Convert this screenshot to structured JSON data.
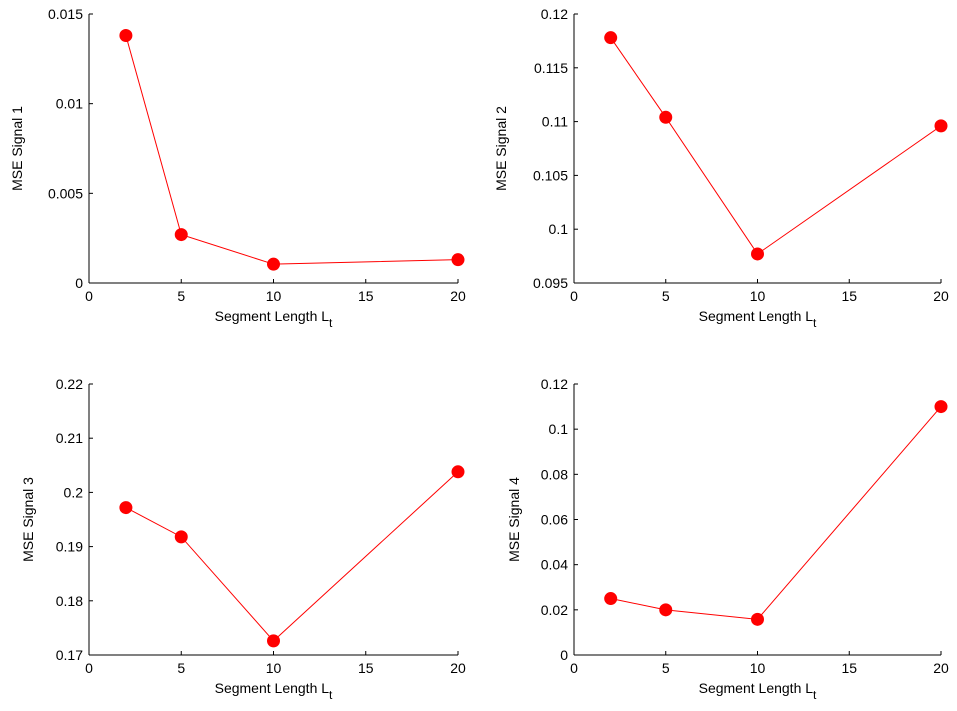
{
  "figure": {
    "marker_color": "#ff0000",
    "line_color": "#ff0000",
    "axis_color": "#000000"
  },
  "chart_data": [
    {
      "type": "line",
      "xlabel": "Segment Length L",
      "xlabel_subscript": "t",
      "ylabel": "MSE Signal 1",
      "x": [
        2,
        5,
        10,
        20
      ],
      "values": [
        0.0138,
        0.0027,
        0.00105,
        0.0013
      ],
      "xlim": [
        0,
        20
      ],
      "ylim": [
        0,
        0.015
      ],
      "xticks": [
        0,
        5,
        10,
        15,
        20
      ],
      "xtick_labels": [
        "0",
        "5",
        "10",
        "15",
        "20"
      ],
      "yticks": [
        0,
        0.005,
        0.01,
        0.015
      ],
      "ytick_labels": [
        "0",
        "0.005",
        "0.01",
        "0.015"
      ],
      "grid": false
    },
    {
      "type": "line",
      "xlabel": "Segment Length L",
      "xlabel_subscript": "t",
      "ylabel": "MSE Signal 2",
      "x": [
        2,
        5,
        10,
        20
      ],
      "values": [
        0.1178,
        0.1104,
        0.0977,
        0.1096
      ],
      "xlim": [
        0,
        20
      ],
      "ylim": [
        0.095,
        0.12
      ],
      "xticks": [
        0,
        5,
        10,
        15,
        20
      ],
      "xtick_labels": [
        "0",
        "5",
        "10",
        "15",
        "20"
      ],
      "yticks": [
        0.095,
        0.1,
        0.105,
        0.11,
        0.115,
        0.12
      ],
      "ytick_labels": [
        "0.095",
        "0.1",
        "0.105",
        "0.11",
        "0.115",
        "0.12"
      ],
      "grid": false
    },
    {
      "type": "line",
      "xlabel": "Segment Length L",
      "xlabel_subscript": "t",
      "ylabel": "MSE Signal 3",
      "x": [
        2,
        5,
        10,
        20
      ],
      "values": [
        0.1972,
        0.1918,
        0.1726,
        0.2038
      ],
      "xlim": [
        0,
        20
      ],
      "ylim": [
        0.17,
        0.22
      ],
      "xticks": [
        0,
        5,
        10,
        15,
        20
      ],
      "xtick_labels": [
        "0",
        "5",
        "10",
        "15",
        "20"
      ],
      "yticks": [
        0.17,
        0.18,
        0.19,
        0.2,
        0.21,
        0.22
      ],
      "ytick_labels": [
        "0.17",
        "0.18",
        "0.19",
        "0.2",
        "0.21",
        "0.22"
      ],
      "grid": false
    },
    {
      "type": "line",
      "xlabel": "Segment Length L",
      "xlabel_subscript": "t",
      "ylabel": "MSE Signal 4",
      "x": [
        2,
        5,
        10,
        20
      ],
      "values": [
        0.025,
        0.02,
        0.0158,
        0.11
      ],
      "xlim": [
        0,
        20
      ],
      "ylim": [
        0,
        0.12
      ],
      "xticks": [
        0,
        5,
        10,
        15,
        20
      ],
      "xtick_labels": [
        "0",
        "5",
        "10",
        "15",
        "20"
      ],
      "yticks": [
        0,
        0.02,
        0.04,
        0.06,
        0.08,
        0.1,
        0.12
      ],
      "ytick_labels": [
        "0",
        "0.02",
        "0.04",
        "0.06",
        "0.08",
        "0.1",
        "0.12"
      ],
      "grid": false
    }
  ]
}
